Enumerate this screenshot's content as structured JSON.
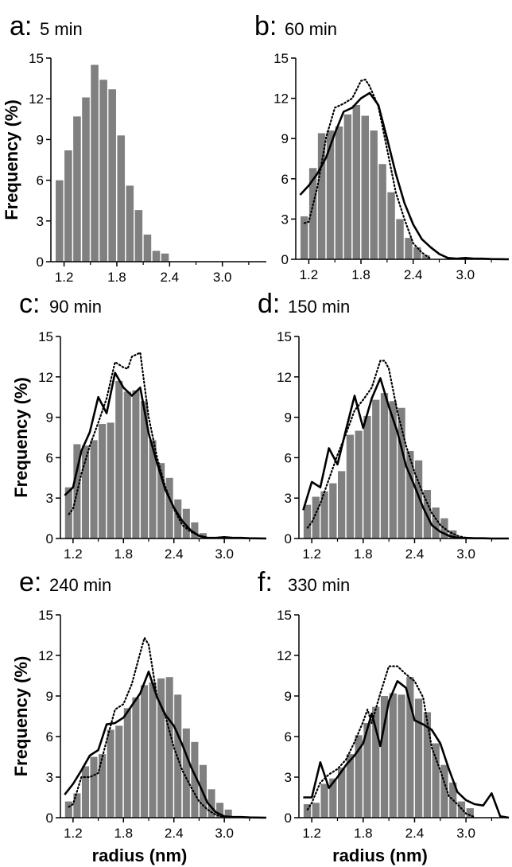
{
  "chart_data": [
    {
      "type": "bar",
      "panel": "a:",
      "title": "5 min",
      "xlabel": "",
      "ylabel": "Frequency (%)",
      "xlim": [
        1.05,
        3.5
      ],
      "ylim": [
        0,
        15
      ],
      "xticks": [
        "1.2",
        "1.8",
        "2.4",
        "3.0"
      ],
      "yticks": [
        "0",
        "3",
        "6",
        "9",
        "12",
        "15"
      ],
      "bin_width": 0.1,
      "bins": [
        1.1,
        1.2,
        1.3,
        1.4,
        1.5,
        1.6,
        1.7,
        1.8,
        1.9,
        2.0,
        2.1,
        2.2,
        2.3
      ],
      "values": [
        6.0,
        8.2,
        10.7,
        12.1,
        14.5,
        13.4,
        12.7,
        9.3,
        5.6,
        3.8,
        2.0,
        0.8,
        0.6
      ],
      "series": []
    },
    {
      "type": "bar",
      "panel": "b:",
      "title": "60 min",
      "xlabel": "",
      "ylabel": "",
      "xlim": [
        1.05,
        3.5
      ],
      "ylim": [
        0,
        15
      ],
      "xticks": [
        "1.2",
        "1.8",
        "2.4",
        "3.0"
      ],
      "yticks": [
        "0",
        "3",
        "6",
        "9",
        "12",
        "15"
      ],
      "bin_width": 0.1,
      "bins": [
        1.1,
        1.2,
        1.3,
        1.4,
        1.5,
        1.6,
        1.7,
        1.8,
        1.9,
        2.0,
        2.1,
        2.2,
        2.3,
        2.4,
        2.5
      ],
      "values": [
        3.2,
        6.8,
        9.4,
        9.6,
        9.9,
        10.8,
        11.5,
        10.7,
        9.6,
        7.1,
        5.0,
        3.0,
        1.6,
        0.9,
        0.3
      ],
      "series": [
        {
          "style": "solid",
          "x": [
            1.1,
            1.2,
            1.3,
            1.4,
            1.5,
            1.6,
            1.7,
            1.8,
            1.9,
            2.0,
            2.1,
            2.2,
            2.3,
            2.4,
            2.5,
            2.6,
            2.7,
            2.8,
            2.9,
            3.0,
            3.1,
            3.2,
            3.3,
            3.5
          ],
          "y": [
            4.8,
            5.5,
            6.4,
            7.6,
            9.4,
            11.0,
            11.3,
            12.0,
            12.4,
            11.5,
            9.0,
            6.4,
            4.2,
            2.6,
            1.5,
            0.9,
            0.4,
            0.1,
            0.05,
            0.1,
            0.05,
            0.05,
            0.02,
            0.0
          ]
        },
        {
          "style": "dotted",
          "x": [
            1.15,
            1.2,
            1.3,
            1.4,
            1.5,
            1.6,
            1.7,
            1.8,
            1.85,
            1.9,
            2.0,
            2.1,
            2.2,
            2.3,
            2.4,
            2.5,
            2.6
          ],
          "y": [
            2.7,
            2.8,
            5.4,
            9.1,
            11.3,
            11.6,
            12.0,
            13.3,
            13.4,
            12.9,
            11.4,
            8.2,
            5.0,
            3.0,
            1.2,
            0.5,
            0.05
          ]
        }
      ]
    },
    {
      "type": "bar",
      "panel": "c:",
      "title": "90 min",
      "xlabel": "",
      "ylabel": "Frequency (%)",
      "xlim": [
        1.05,
        3.5
      ],
      "ylim": [
        0,
        15
      ],
      "xticks": [
        "1.2",
        "1.8",
        "2.4",
        "3.0"
      ],
      "yticks": [
        "0",
        "3",
        "6",
        "9",
        "12",
        "15"
      ],
      "bin_width": 0.1,
      "bins": [
        1.1,
        1.2,
        1.3,
        1.4,
        1.5,
        1.6,
        1.7,
        1.8,
        1.9,
        2.0,
        2.1,
        2.2,
        2.3,
        2.4,
        2.5,
        2.6,
        2.7
      ],
      "values": [
        3.8,
        7.0,
        6.9,
        7.3,
        8.5,
        8.6,
        11.7,
        10.9,
        11.0,
        10.2,
        7.3,
        5.6,
        4.5,
        2.9,
        2.2,
        1.2,
        0.4
      ],
      "series": [
        {
          "style": "solid",
          "x": [
            1.1,
            1.2,
            1.3,
            1.4,
            1.5,
            1.6,
            1.7,
            1.8,
            1.9,
            2.0,
            2.1,
            2.2,
            2.3,
            2.4,
            2.5,
            2.6,
            2.7,
            2.8,
            2.9,
            3.0,
            3.1,
            3.2,
            3.3,
            3.5
          ],
          "y": [
            3.2,
            3.8,
            6.5,
            7.9,
            10.5,
            9.3,
            12.3,
            11.2,
            10.6,
            11.2,
            7.8,
            5.6,
            3.6,
            2.3,
            1.3,
            0.6,
            0.2,
            0.05,
            0.05,
            0.1,
            0.05,
            0.05,
            0.02,
            0.0
          ]
        },
        {
          "style": "dotted",
          "x": [
            1.15,
            1.2,
            1.3,
            1.4,
            1.5,
            1.6,
            1.7,
            1.8,
            1.85,
            1.9,
            2.0,
            2.1,
            2.2,
            2.3,
            2.4,
            2.5,
            2.6,
            2.7,
            2.8
          ],
          "y": [
            1.8,
            2.2,
            4.8,
            6.9,
            8.6,
            10.4,
            13.1,
            12.7,
            12.6,
            13.5,
            13.8,
            9.0,
            6.0,
            3.8,
            2.2,
            1.0,
            0.5,
            0.2,
            0.05
          ]
        }
      ]
    },
    {
      "type": "bar",
      "panel": "d:",
      "title": "150 min",
      "xlabel": "",
      "ylabel": "",
      "xlim": [
        1.05,
        3.5
      ],
      "ylim": [
        0,
        15
      ],
      "xticks": [
        "1.2",
        "1.8",
        "2.4",
        "3.0"
      ],
      "yticks": [
        "0",
        "3",
        "6",
        "9",
        "12",
        "15"
      ],
      "bin_width": 0.1,
      "bins": [
        1.1,
        1.2,
        1.3,
        1.4,
        1.5,
        1.6,
        1.7,
        1.8,
        1.9,
        2.0,
        2.1,
        2.2,
        2.3,
        2.4,
        2.5,
        2.6,
        2.7,
        2.8
      ],
      "values": [
        2.5,
        3.1,
        3.5,
        4.1,
        5.0,
        7.7,
        8.0,
        9.1,
        10.3,
        10.8,
        10.2,
        9.7,
        6.5,
        5.8,
        3.6,
        2.3,
        1.5,
        0.6
      ],
      "series": [
        {
          "style": "solid",
          "x": [
            1.1,
            1.2,
            1.3,
            1.4,
            1.5,
            1.6,
            1.7,
            1.8,
            1.9,
            2.0,
            2.1,
            2.2,
            2.3,
            2.4,
            2.5,
            2.6,
            2.7,
            2.8,
            2.9,
            3.0,
            3.1,
            3.2,
            3.3,
            3.5
          ],
          "y": [
            2.1,
            4.2,
            3.8,
            6.7,
            5.5,
            8.1,
            10.6,
            8.2,
            10.4,
            11.9,
            9.8,
            7.9,
            5.4,
            3.9,
            2.3,
            1.0,
            0.5,
            0.2,
            0.05,
            0.05,
            0.02,
            0.02,
            0.0,
            0.0
          ]
        },
        {
          "style": "dotted",
          "x": [
            1.15,
            1.2,
            1.3,
            1.4,
            1.5,
            1.6,
            1.7,
            1.8,
            1.9,
            2.0,
            2.05,
            2.1,
            2.2,
            2.3,
            2.4,
            2.5,
            2.6,
            2.7,
            2.8,
            2.9,
            3.0
          ],
          "y": [
            0.8,
            1.2,
            2.6,
            4.4,
            6.2,
            7.8,
            9.5,
            10.3,
            11.2,
            13.2,
            13.2,
            12.6,
            9.4,
            6.9,
            4.9,
            3.3,
            1.9,
            1.0,
            0.5,
            0.2,
            0.05
          ]
        }
      ]
    },
    {
      "type": "bar",
      "panel": "e:",
      "title": "240 min",
      "xlabel": "radius (nm)",
      "ylabel": "Frequency (%)",
      "xlim": [
        1.05,
        3.5
      ],
      "ylim": [
        0,
        15
      ],
      "xticks": [
        "1.2",
        "1.8",
        "2.4",
        "3.0"
      ],
      "yticks": [
        "0",
        "3",
        "6",
        "9",
        "12",
        "15"
      ],
      "bin_width": 0.1,
      "bins": [
        1.1,
        1.2,
        1.3,
        1.4,
        1.5,
        1.6,
        1.7,
        1.8,
        1.9,
        2.0,
        2.1,
        2.2,
        2.3,
        2.4,
        2.5,
        2.6,
        2.7,
        2.8,
        2.9,
        3.0
      ],
      "values": [
        1.2,
        1.8,
        3.8,
        4.5,
        4.7,
        6.5,
        6.8,
        8.1,
        8.9,
        9.8,
        10.0,
        10.3,
        10.4,
        9.1,
        6.6,
        5.6,
        3.9,
        2.1,
        1.1,
        0.6
      ],
      "series": [
        {
          "style": "solid",
          "x": [
            1.1,
            1.2,
            1.3,
            1.4,
            1.5,
            1.6,
            1.7,
            1.8,
            1.9,
            2.0,
            2.1,
            2.2,
            2.3,
            2.4,
            2.5,
            2.6,
            2.7,
            2.8,
            2.9,
            3.0,
            3.1,
            3.2,
            3.3,
            3.5
          ],
          "y": [
            1.7,
            2.5,
            3.5,
            4.6,
            5.0,
            6.9,
            7.0,
            7.4,
            8.3,
            9.2,
            10.8,
            8.9,
            7.6,
            6.8,
            5.4,
            3.8,
            2.5,
            1.1,
            0.4,
            0.1,
            0.05,
            0.05,
            0.02,
            0.0
          ]
        },
        {
          "style": "dotted",
          "x": [
            1.15,
            1.2,
            1.3,
            1.4,
            1.5,
            1.6,
            1.7,
            1.8,
            1.9,
            2.0,
            2.05,
            2.1,
            2.2,
            2.3,
            2.4,
            2.5,
            2.6,
            2.7,
            2.8,
            2.9,
            3.0
          ],
          "y": [
            0.8,
            1.0,
            3.0,
            3.0,
            3.3,
            5.7,
            8.0,
            8.4,
            9.9,
            12.2,
            13.3,
            12.8,
            8.9,
            7.5,
            5.2,
            3.5,
            2.3,
            1.2,
            0.6,
            0.2,
            0.05
          ]
        }
      ]
    },
    {
      "type": "bar",
      "panel": "f:",
      "title": "330 min",
      "xlabel": "radius (nm)",
      "ylabel": "",
      "xlim": [
        1.05,
        3.5
      ],
      "ylim": [
        0,
        15
      ],
      "xticks": [
        "1.2",
        "1.8",
        "2.4",
        "3.0"
      ],
      "yticks": [
        "0",
        "3",
        "6",
        "9",
        "12",
        "15"
      ],
      "bin_width": 0.1,
      "bins": [
        1.1,
        1.2,
        1.3,
        1.4,
        1.5,
        1.6,
        1.7,
        1.8,
        1.9,
        2.0,
        2.1,
        2.2,
        2.3,
        2.4,
        2.5,
        2.6,
        2.7,
        2.8,
        2.9,
        3.0
      ],
      "values": [
        1.0,
        1.1,
        2.5,
        2.9,
        3.7,
        4.7,
        6.1,
        7.0,
        8.2,
        9.0,
        9.2,
        9.1,
        10.4,
        8.8,
        7.8,
        5.5,
        3.9,
        2.6,
        1.2,
        0.7
      ],
      "series": [
        {
          "style": "solid",
          "x": [
            1.1,
            1.2,
            1.3,
            1.4,
            1.5,
            1.6,
            1.7,
            1.8,
            1.9,
            2.0,
            2.1,
            2.2,
            2.3,
            2.4,
            2.5,
            2.6,
            2.7,
            2.8,
            2.9,
            3.0,
            3.1,
            3.2,
            3.3,
            3.4,
            3.5
          ],
          "y": [
            1.5,
            1.5,
            4.1,
            2.2,
            3.0,
            3.9,
            4.6,
            5.5,
            7.7,
            5.3,
            8.6,
            10.1,
            9.6,
            7.2,
            6.9,
            6.5,
            5.5,
            3.6,
            1.9,
            1.3,
            1.0,
            0.9,
            1.8,
            0.1,
            0.0
          ]
        },
        {
          "style": "dotted",
          "x": [
            1.15,
            1.2,
            1.3,
            1.4,
            1.5,
            1.6,
            1.7,
            1.8,
            1.85,
            1.9,
            2.0,
            2.1,
            2.2,
            2.3,
            2.4,
            2.5,
            2.6,
            2.7,
            2.8,
            2.9,
            3.0,
            3.1
          ],
          "y": [
            0.6,
            1.1,
            2.6,
            3.2,
            3.6,
            4.3,
            5.6,
            7.1,
            8.0,
            7.0,
            9.2,
            11.2,
            11.2,
            10.6,
            10.1,
            8.9,
            5.2,
            3.5,
            1.6,
            1.0,
            0.3,
            0.05
          ]
        }
      ]
    }
  ]
}
